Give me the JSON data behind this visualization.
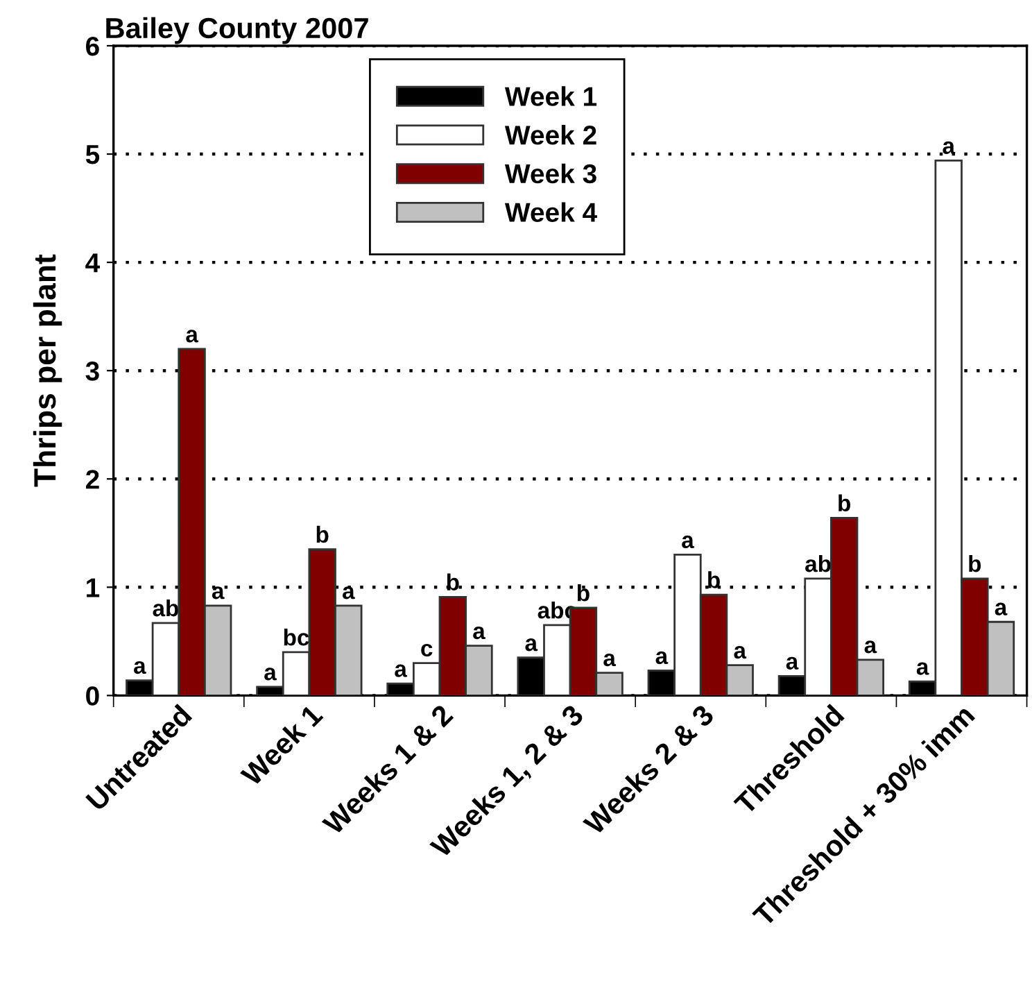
{
  "chart_data": {
    "type": "bar",
    "title": "Bailey County 2007",
    "ylabel": "Thrips per plant",
    "categories": [
      "Untreated",
      "Week 1",
      "Weeks 1 & 2",
      "Weeks 1, 2 & 3",
      "Weeks 2 & 3",
      "Threshold",
      "Threshold + 30% imm"
    ],
    "series": [
      {
        "name": "Week 1",
        "color": "#000000",
        "values": [
          0.14,
          0.08,
          0.11,
          0.35,
          0.23,
          0.18,
          0.13
        ],
        "value_labels": [
          "a",
          "a",
          "a",
          "a",
          "a",
          "a",
          "a"
        ]
      },
      {
        "name": "Week 2",
        "color": "#ffffff",
        "values": [
          0.67,
          0.4,
          0.3,
          0.65,
          1.3,
          1.08,
          4.94
        ],
        "value_labels": [
          "ab",
          "bc",
          "c",
          "abc",
          "a",
          "ab",
          "a"
        ]
      },
      {
        "name": "Week 3",
        "color": "#800000",
        "values": [
          3.2,
          1.35,
          0.91,
          0.81,
          0.93,
          1.64,
          1.08
        ],
        "value_labels": [
          "a",
          "b",
          "b",
          "b",
          "b",
          "b",
          "b"
        ]
      },
      {
        "name": "Week 4",
        "color": "#c0c0c0",
        "values": [
          0.83,
          0.83,
          0.46,
          0.21,
          0.28,
          0.33,
          0.68
        ],
        "value_labels": [
          "a",
          "a",
          "a",
          "a",
          "a",
          "a",
          "a"
        ]
      }
    ],
    "ylim": [
      0,
      6
    ],
    "yticks": [
      0,
      1,
      2,
      3,
      4,
      5,
      6
    ],
    "grid": "y",
    "legend": "top"
  }
}
